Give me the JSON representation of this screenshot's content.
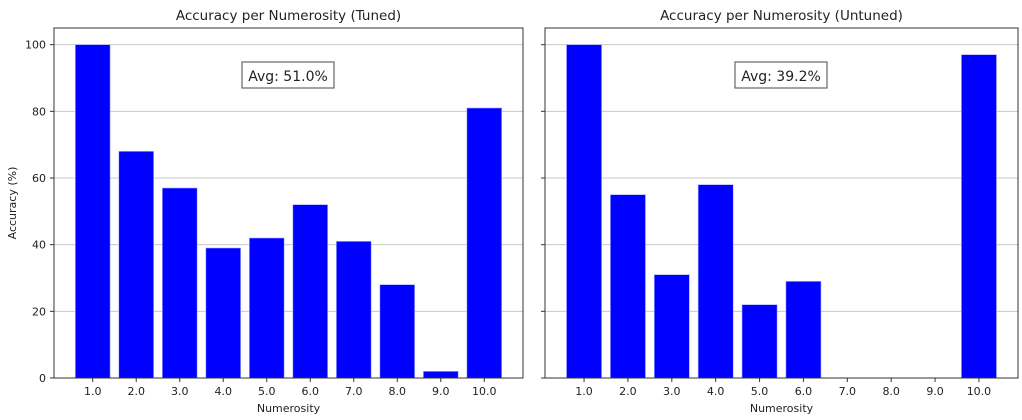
{
  "chart_data": [
    {
      "type": "bar",
      "title": "Accuracy per Numerosity (Tuned)",
      "xlabel": "Numerosity",
      "ylabel": "Accuracy (%)",
      "categories": [
        "1.0",
        "2.0",
        "3.0",
        "4.0",
        "5.0",
        "6.0",
        "7.0",
        "8.0",
        "9.0",
        "10.0"
      ],
      "values": [
        100,
        68,
        57,
        39,
        42,
        52,
        41,
        28,
        2,
        81
      ],
      "ylim": [
        0,
        105
      ],
      "yticks": [
        "0",
        "20",
        "40",
        "60",
        "80",
        "100"
      ],
      "grid": "y",
      "bar_color": "#0000ff",
      "annotation": "Avg: 51.0%"
    },
    {
      "type": "bar",
      "title": "Accuracy per Numerosity (Untuned)",
      "xlabel": "Numerosity",
      "ylabel": "",
      "categories": [
        "1.0",
        "2.0",
        "3.0",
        "4.0",
        "5.0",
        "6.0",
        "7.0",
        "8.0",
        "9.0",
        "10.0"
      ],
      "values": [
        100,
        55,
        31,
        58,
        22,
        29,
        0,
        0,
        0,
        97
      ],
      "ylim": [
        0,
        105
      ],
      "yticks": [],
      "grid": "y",
      "bar_color": "#0000ff",
      "annotation": "Avg: 39.2%"
    }
  ]
}
